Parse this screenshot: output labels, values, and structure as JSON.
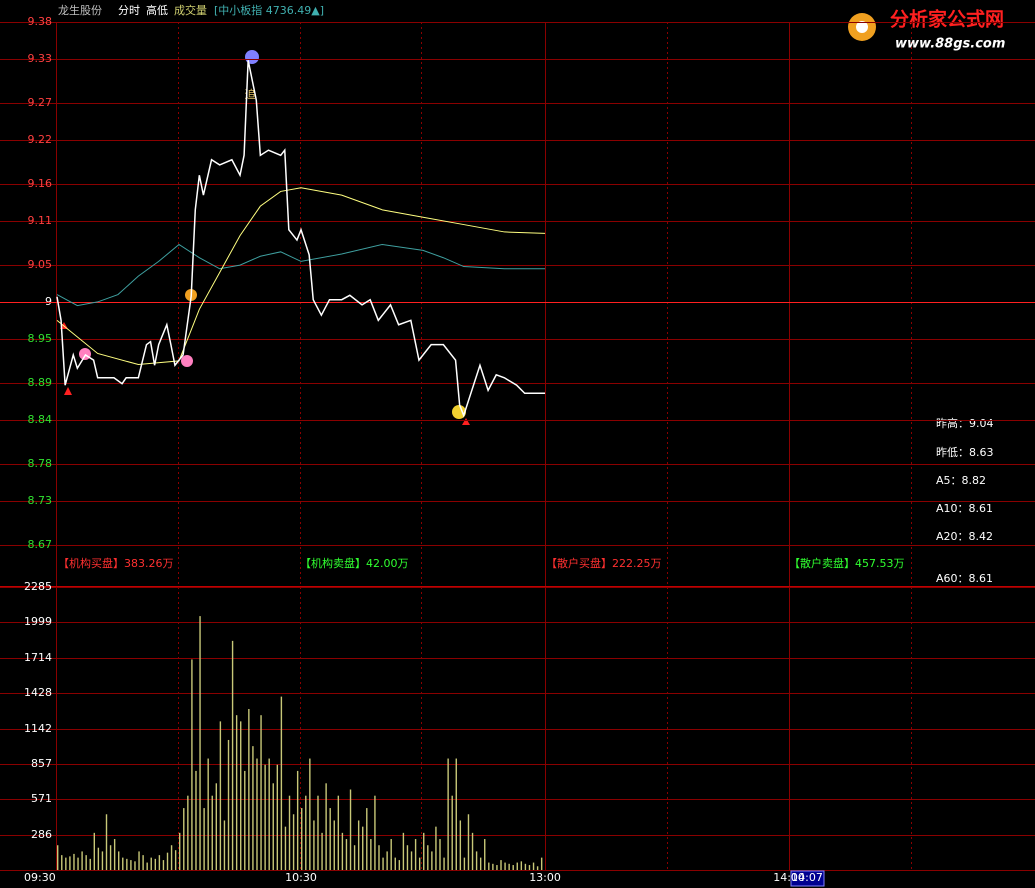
{
  "header": {
    "stock": "龙生股份",
    "tabs": [
      "分时",
      "高低",
      "成交量"
    ],
    "index_label": "[中小板指 4736.49▲]"
  },
  "logo": {
    "title": "分析家公式网",
    "url": "www.88gs.com"
  },
  "signal_text": "追",
  "flow": [
    "【机构买盘】383.26万",
    "【机构卖盘】42.00万",
    "【散户买盘】222.25万",
    "【散户卖盘】457.53万"
  ],
  "stats": [
    "昨高：9.04",
    "昨低：8.63",
    "A5：8.82",
    "A10：8.61",
    "A20：8.42",
    "A60：8.61"
  ],
  "cursor_time": "14:07",
  "chart_data": [
    {
      "type": "line",
      "ylim": [
        8.67,
        9.38
      ],
      "baseline": 9.0,
      "yticks": [
        9.38,
        9.33,
        9.27,
        9.22,
        9.16,
        9.11,
        9.05,
        9.0,
        8.95,
        8.89,
        8.84,
        8.78,
        8.73,
        8.67
      ],
      "series": [
        {
          "color": "#ffffff",
          "x": [
            "09:30",
            "09:31",
            "09:32",
            "09:34",
            "09:35",
            "09:37",
            "09:39",
            "09:40",
            "09:42",
            "09:44",
            "09:46",
            "09:47",
            "09:50",
            "09:52",
            "09:53",
            "09:54",
            "09:55",
            "09:57",
            "09:58",
            "09:59",
            "10:00",
            "10:01",
            "10:03",
            "10:04",
            "10:05",
            "10:06",
            "10:08",
            "10:10",
            "10:13",
            "10:15",
            "10:16",
            "10:17",
            "10:19",
            "10:20",
            "10:22",
            "10:25",
            "10:26",
            "10:27",
            "10:29",
            "10:30",
            "10:32",
            "10:33",
            "10:35",
            "10:37",
            "10:40",
            "10:42",
            "10:45",
            "10:47",
            "10:49",
            "10:52",
            "10:54",
            "10:57",
            "10:59",
            "11:02",
            "11:05",
            "11:08",
            "11:09",
            "11:10",
            "11:12",
            "11:14",
            "11:16",
            "11:18",
            "11:20",
            "11:23",
            "11:25",
            "11:30"
          ],
          "values": [
            9.007,
            8.975,
            8.887,
            8.928,
            8.91,
            8.928,
            8.921,
            8.897,
            8.897,
            8.897,
            8.889,
            8.897,
            8.897,
            8.942,
            8.946,
            8.914,
            8.942,
            8.969,
            8.942,
            8.914,
            8.921,
            8.928,
            9.008,
            9.125,
            9.172,
            9.145,
            9.193,
            9.186,
            9.193,
            9.172,
            9.199,
            9.328,
            9.274,
            9.199,
            9.206,
            9.199,
            9.206,
            9.098,
            9.084,
            9.098,
            9.064,
            9.003,
            8.982,
            9.003,
            9.003,
            9.009,
            8.996,
            9.003,
            8.975,
            8.996,
            8.969,
            8.975,
            8.921,
            8.942,
            8.942,
            8.921,
            8.86,
            8.846,
            8.88,
            8.914,
            8.88,
            8.901,
            8.897,
            8.887,
            8.876,
            8.876
          ]
        },
        {
          "color": "#ffff80",
          "x": [
            "09:30",
            "09:40",
            "09:50",
            "10:00",
            "10:05",
            "10:10",
            "10:15",
            "10:20",
            "10:25",
            "10:30",
            "10:40",
            "10:50",
            "11:00",
            "11:10",
            "11:20",
            "11:30"
          ],
          "values": [
            8.975,
            8.93,
            8.915,
            8.92,
            8.99,
            9.04,
            9.09,
            9.13,
            9.15,
            9.155,
            9.145,
            9.125,
            9.115,
            9.105,
            9.095,
            9.093
          ]
        },
        {
          "color": "#3fa0a0",
          "x": [
            "09:30",
            "09:35",
            "09:40",
            "09:45",
            "09:50",
            "09:55",
            "10:00",
            "10:05",
            "10:10",
            "10:15",
            "10:20",
            "10:25",
            "10:30",
            "10:40",
            "10:50",
            "11:00",
            "11:05",
            "11:10",
            "11:20",
            "11:30"
          ],
          "values": [
            9.01,
            8.995,
            9.0,
            9.01,
            9.035,
            9.055,
            9.078,
            9.06,
            9.045,
            9.05,
            9.062,
            9.068,
            9.055,
            9.065,
            9.078,
            9.07,
            9.06,
            9.048,
            9.045,
            9.045
          ]
        }
      ]
    },
    {
      "type": "bar",
      "ylim": [
        0,
        2285
      ],
      "color": "#c8c878",
      "start": "09:30",
      "yticks": [
        2285,
        1999,
        1714,
        1428,
        1142,
        857,
        571,
        286
      ],
      "xticks": [
        "09:30",
        "10:30",
        "13:00",
        "14:00"
      ],
      "values": [
        200,
        120,
        100,
        110,
        130,
        100,
        150,
        120,
        90,
        300,
        180,
        150,
        450,
        200,
        250,
        150,
        100,
        90,
        80,
        70,
        150,
        120,
        60,
        100,
        90,
        120,
        80,
        140,
        200,
        160,
        300,
        500,
        600,
        1700,
        800,
        2050,
        500,
        900,
        600,
        700,
        1200,
        400,
        1050,
        1850,
        1250,
        1200,
        800,
        1300,
        1000,
        900,
        1250,
        850,
        900,
        700,
        850,
        1400,
        350,
        600,
        450,
        800,
        500,
        600,
        900,
        400,
        600,
        300,
        700,
        500,
        400,
        600,
        300,
        250,
        650,
        200,
        400,
        350,
        500,
        250,
        600,
        200,
        100,
        150,
        250,
        100,
        80,
        300,
        200,
        150,
        250,
        100,
        300,
        200,
        150,
        350,
        250,
        100,
        900,
        600,
        900,
        400,
        100,
        450,
        300,
        150,
        100,
        250,
        60,
        50,
        40,
        80,
        60,
        50,
        40,
        60,
        70,
        50,
        40,
        60,
        30,
        100
      ]
    }
  ]
}
